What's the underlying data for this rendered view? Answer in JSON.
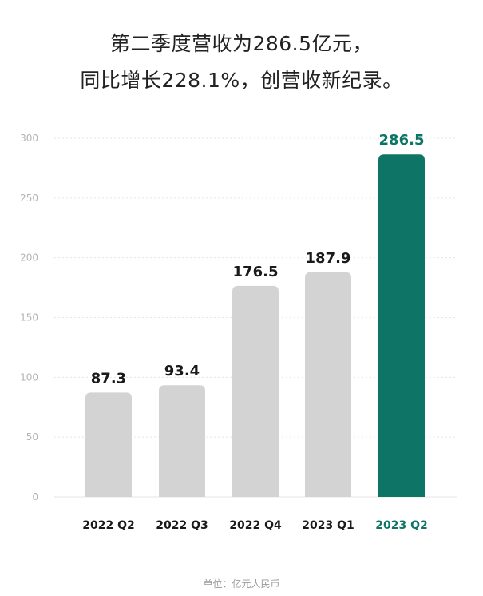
{
  "title_lines": [
    "第二季度营收为286.5亿元，",
    "同比增长228.1%，创营收新纪录。"
  ],
  "unit_note": "单位：亿元人民币",
  "colors": {
    "bar_default": "#d3d3d3",
    "bar_highlight": "#0e7566",
    "label_default": "#1a1a1a",
    "label_highlight": "#0e7566",
    "grid": "#e6e6e6",
    "axis_tick": "#b3b3b3"
  },
  "chart_data": {
    "type": "bar",
    "categories": [
      "2022 Q2",
      "2022 Q3",
      "2022 Q4",
      "2023 Q1",
      "2023 Q2"
    ],
    "values": [
      87.3,
      93.4,
      176.5,
      187.9,
      286.5
    ],
    "value_labels": [
      "87.3",
      "93.4",
      "176.5",
      "187.9",
      "286.5"
    ],
    "highlight_index": 4,
    "ylim": [
      0,
      300
    ],
    "yticks": [
      0,
      50,
      100,
      150,
      200,
      250,
      300
    ],
    "grid": true,
    "grid_style": "dotted",
    "legend": "none",
    "title": "第二季度营收为286.5亿元，同比增长228.1%，创营收新纪录。",
    "xlabel": "",
    "ylabel": ""
  }
}
